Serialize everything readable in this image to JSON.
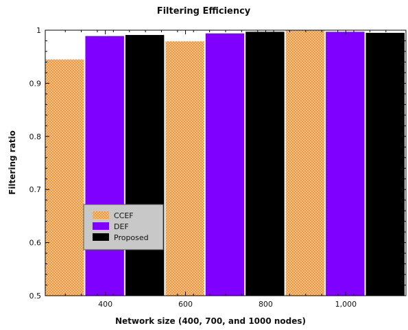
{
  "chart_data": {
    "type": "bar",
    "title": "Filtering Efficiency",
    "xlabel": "Network size (400, 700, and 1000 nodes)",
    "ylabel": "Filtering ratio",
    "x_ticks": [
      "400",
      "600",
      "800",
      "1,000"
    ],
    "x_domain": [
      250,
      1150
    ],
    "groups": [
      400,
      700,
      1000
    ],
    "ylim": [
      0.5,
      1.0
    ],
    "y_ticks": [
      "0.5",
      "0.6",
      "0.7",
      "0.8",
      "0.9",
      "1"
    ],
    "series": [
      {
        "name": "CCEF",
        "color": "#f6a24c",
        "pattern": "crosshatch",
        "values": [
          0.945,
          0.979,
          1.0
        ]
      },
      {
        "name": "DEF",
        "color": "#8000ff",
        "values": [
          0.989,
          0.994,
          0.997
        ]
      },
      {
        "name": "Proposed",
        "color": "#000000",
        "values": [
          0.991,
          0.997,
          0.995
        ]
      }
    ],
    "legend_position": "lower-left",
    "grid": false
  }
}
